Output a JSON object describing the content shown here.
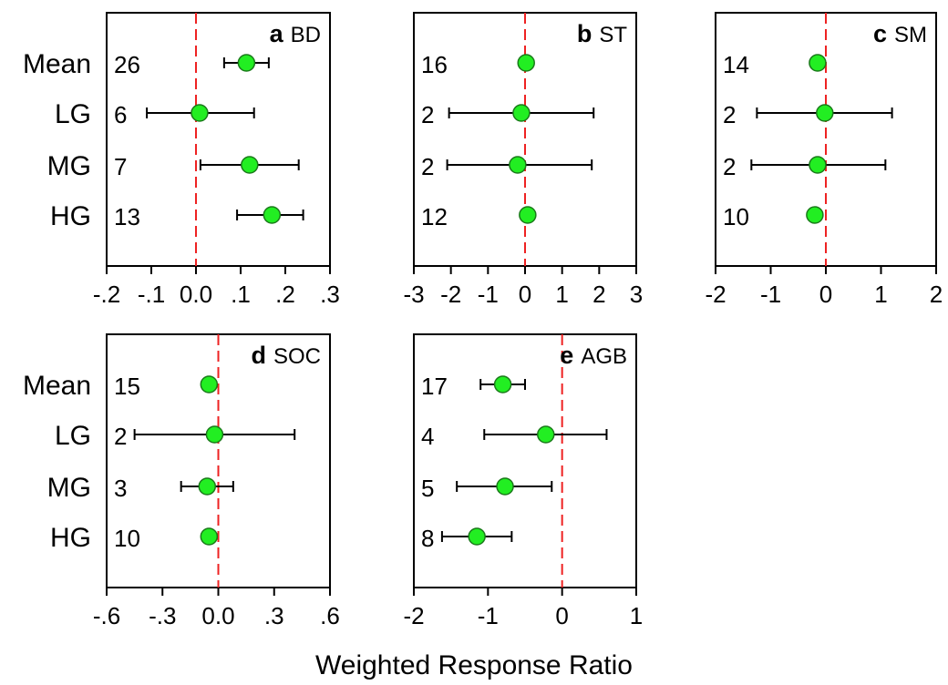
{
  "xlabel": "Weighted Response Ratio",
  "colors": {
    "marker_fill": "#22ee22",
    "marker_stroke": "#1a7a1a",
    "zero_line": "#ee2222",
    "error_bar": "#000000",
    "axis": "#000000"
  },
  "chart_data": [
    {
      "type": "scatter",
      "panel_letter": "a",
      "title": "BD",
      "categories": [
        "Mean",
        "LG",
        "MG",
        "HG"
      ],
      "values": [
        0.113,
        0.008,
        0.12,
        0.17
      ],
      "ci_low": [
        0.063,
        -0.11,
        0.01,
        0.092
      ],
      "ci_high": [
        0.163,
        0.13,
        0.23,
        0.24
      ],
      "n": [
        "26",
        "6",
        "7",
        "13"
      ],
      "xlim": [
        -0.2,
        0.3
      ],
      "xticks": [
        -0.2,
        -0.1,
        0,
        0.1,
        0.2,
        0.3
      ],
      "xticklabels": [
        "-.2",
        "-.1",
        "0.0",
        ".1",
        ".2",
        ".3"
      ],
      "reference_line": 0
    },
    {
      "type": "scatter",
      "panel_letter": "b",
      "title": "ST",
      "categories": [
        "Mean",
        "LG",
        "MG",
        "HG"
      ],
      "values": [
        0.03,
        -0.1,
        -0.2,
        0.07
      ],
      "ci_low": [
        null,
        -2.05,
        -2.1,
        null
      ],
      "ci_high": [
        null,
        1.85,
        1.8,
        null
      ],
      "n": [
        "16",
        "2",
        "2",
        "12"
      ],
      "xlim": [
        -3,
        3
      ],
      "xticks": [
        -3,
        -2,
        -1,
        0,
        1,
        2,
        3
      ],
      "xticklabels": [
        "-3",
        "-2",
        "-1",
        "0",
        "1",
        "2",
        "3"
      ],
      "reference_line": 0
    },
    {
      "type": "scatter",
      "panel_letter": "c",
      "title": "SM",
      "categories": [
        "Mean",
        "LG",
        "MG",
        "HG"
      ],
      "values": [
        -0.15,
        -0.02,
        -0.15,
        -0.2
      ],
      "ci_low": [
        null,
        -1.25,
        -1.35,
        null
      ],
      "ci_high": [
        null,
        1.2,
        1.08,
        null
      ],
      "n": [
        "14",
        "2",
        "2",
        "10"
      ],
      "xlim": [
        -2,
        2
      ],
      "xticks": [
        -2,
        -1,
        0,
        1,
        2
      ],
      "xticklabels": [
        "-2",
        "-1",
        "0",
        "1",
        "2"
      ],
      "reference_line": 0
    },
    {
      "type": "scatter",
      "panel_letter": "d",
      "title": "SOC",
      "categories": [
        "Mean",
        "LG",
        "MG",
        "HG"
      ],
      "values": [
        -0.05,
        -0.02,
        -0.06,
        -0.05
      ],
      "ci_low": [
        null,
        -0.45,
        -0.2,
        null
      ],
      "ci_high": [
        null,
        0.41,
        0.08,
        null
      ],
      "n": [
        "15",
        "2",
        "3",
        "10"
      ],
      "xlim": [
        -0.6,
        0.6
      ],
      "xticks": [
        -0.6,
        -0.3,
        0,
        0.3,
        0.6
      ],
      "xticklabels": [
        "-.6",
        "-.3",
        "0.0",
        ".3",
        ".6"
      ],
      "reference_line": 0
    },
    {
      "type": "scatter",
      "panel_letter": "e",
      "title": "AGB",
      "categories": [
        "Mean",
        "LG",
        "MG",
        "HG"
      ],
      "values": [
        -0.8,
        -0.22,
        -0.77,
        -1.15
      ],
      "ci_low": [
        -1.1,
        -1.05,
        -1.42,
        -1.62
      ],
      "ci_high": [
        -0.5,
        0.6,
        -0.14,
        -0.68
      ],
      "n": [
        "17",
        "4",
        "5",
        "8"
      ],
      "xlim": [
        -2,
        1
      ],
      "xticks": [
        -2,
        -1,
        0,
        1
      ],
      "xticklabels": [
        "-2",
        "-1",
        "0",
        "1"
      ],
      "reference_line": 0
    }
  ]
}
